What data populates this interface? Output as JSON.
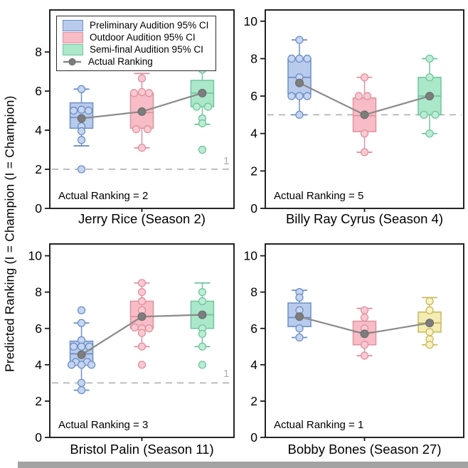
{
  "figure": {
    "y_axis_label": "Predicted Ranking (I = Champion (I = Champion)",
    "legend": {
      "items": [
        {
          "label": "Preliminary Audition 95% CI",
          "swatch": "blue",
          "type": "box"
        },
        {
          "label": "Outdoor Audition 95% CI",
          "swatch": "pink",
          "type": "box"
        },
        {
          "label": "Semi-final Audition 95% CI",
          "swatch": "green",
          "type": "box"
        },
        {
          "label": "Actual Ranking",
          "swatch": "gray",
          "type": "line-dot"
        }
      ]
    },
    "colors": {
      "blue": {
        "fill": "#b9cbec",
        "stroke": "#6b8fc7",
        "point_fill": "#c6d5f0"
      },
      "pink": {
        "fill": "#f7bcc6",
        "stroke": "#e0919f",
        "point_fill": "#f9c9d1"
      },
      "green": {
        "fill": "#abe7c9",
        "stroke": "#6fc69e",
        "point_fill": "#bdecd5"
      },
      "yellow": {
        "fill": "#f3edb3",
        "stroke": "#c9b95a",
        "point_fill": "#f7f1c4"
      },
      "actual_gray": "#7d7d7d",
      "actual_line_gray": "#8a8a8a",
      "dashed_gray": "#b5b5b5",
      "axis_black": "#1a1a1a"
    }
  },
  "chart_data": [
    {
      "type": "box",
      "title": "Jerry Rice (Season 2)",
      "annotation": "Actual Ranking = 2",
      "actual_ranking": 2,
      "ylim": [
        0,
        10
      ],
      "yticks": [
        0,
        2,
        4,
        6,
        8
      ],
      "dashed_line_y": 2,
      "dashed_line_label": "1",
      "groups": [
        {
          "stage": "Preliminary Audition",
          "color": "blue",
          "whisker_low": 3.2,
          "q1": 4.1,
          "median": 4.65,
          "q3": 5.4,
          "whisker_high": 6.1,
          "actual": 4.6,
          "points": [
            [
              6.1,
              0
            ],
            [
              5.0,
              -11
            ],
            [
              5.05,
              0
            ],
            [
              5.0,
              10
            ],
            [
              4.2,
              0
            ],
            [
              3.95,
              0
            ],
            [
              3.5,
              0
            ],
            [
              2.0,
              0
            ]
          ]
        },
        {
          "stage": "Outdoor Audition",
          "color": "pink",
          "whisker_low": 3.1,
          "q1": 4.1,
          "median": 4.9,
          "q3": 5.9,
          "whisker_high": 6.9,
          "actual": 4.95,
          "points": [
            [
              6.65,
              0
            ],
            [
              5.9,
              -11
            ],
            [
              5.95,
              0
            ],
            [
              5.9,
              10
            ],
            [
              4.05,
              -8
            ],
            [
              4.05,
              8
            ],
            [
              3.1,
              0
            ]
          ]
        },
        {
          "stage": "Semi-final Audition",
          "color": "green",
          "whisker_low": 4.3,
          "q1": 5.2,
          "median": 5.9,
          "q3": 6.55,
          "whisker_high": 7.1,
          "actual": 5.9,
          "points": [
            [
              8.0,
              0
            ],
            [
              7.1,
              0
            ],
            [
              5.2,
              -8
            ],
            [
              5.2,
              8
            ],
            [
              4.6,
              0
            ],
            [
              4.35,
              0
            ],
            [
              3.0,
              0
            ]
          ]
        }
      ]
    },
    {
      "type": "box",
      "title": "Billy Ray Cyrus (Season 4)",
      "annotation": "Actual Ranking = 5",
      "actual_ranking": 5,
      "ylim": [
        0,
        10
      ],
      "yticks": [
        0,
        2,
        4,
        6,
        8,
        10
      ],
      "dashed_line_y": 5,
      "dashed_line_label": null,
      "groups": [
        {
          "stage": "Preliminary Audition",
          "color": "blue",
          "whisker_low": 5.0,
          "q1": 6.1,
          "median": 7.0,
          "q3": 8.0,
          "whisker_high": 9.0,
          "actual": 6.7,
          "points": [
            [
              9.0,
              0
            ],
            [
              8.0,
              -11
            ],
            [
              8.0,
              0
            ],
            [
              8.0,
              11
            ],
            [
              7.0,
              0
            ],
            [
              6.0,
              -11
            ],
            [
              6.0,
              0
            ],
            [
              6.0,
              11
            ],
            [
              5.0,
              0
            ]
          ]
        },
        {
          "stage": "Outdoor Audition",
          "color": "pink",
          "whisker_low": 3.0,
          "q1": 4.1,
          "median": 4.95,
          "q3": 5.9,
          "whisker_high": 7.0,
          "actual": 5.0,
          "points": [
            [
              7.0,
              0
            ],
            [
              6.0,
              -8
            ],
            [
              6.0,
              4
            ],
            [
              4.0,
              0
            ],
            [
              3.0,
              0
            ]
          ]
        },
        {
          "stage": "Semi-final Audition",
          "color": "green",
          "whisker_low": 4.0,
          "q1": 5.0,
          "median": 6.0,
          "q3": 7.0,
          "whisker_high": 8.0,
          "actual": 6.0,
          "points": [
            [
              8.0,
              0
            ],
            [
              7.0,
              0
            ],
            [
              5.0,
              -8
            ],
            [
              5.0,
              8
            ],
            [
              4.0,
              0
            ]
          ]
        }
      ]
    },
    {
      "type": "box",
      "title": "Bristol Palin (Season 11)",
      "annotation": "Actual Ranking = 3",
      "actual_ranking": 3,
      "ylim": [
        0,
        10
      ],
      "yticks": [
        0,
        2,
        4,
        6,
        8,
        10
      ],
      "dashed_line_y": 3,
      "dashed_line_label": "1",
      "groups": [
        {
          "stage": "Preliminary Audition",
          "color": "blue",
          "whisker_low": 2.6,
          "q1": 4.05,
          "median": 4.6,
          "q3": 5.3,
          "whisker_high": 6.3,
          "actual": 4.55,
          "points": [
            [
              7.0,
              0
            ],
            [
              6.3,
              0
            ],
            [
              5.35,
              0
            ],
            [
              5.0,
              -11
            ],
            [
              5.0,
              0
            ],
            [
              5.0,
              11
            ],
            [
              4.15,
              -8
            ],
            [
              4.15,
              8
            ],
            [
              4.0,
              -14
            ],
            [
              4.0,
              0
            ],
            [
              4.0,
              14
            ],
            [
              3.0,
              0
            ],
            [
              2.6,
              0
            ]
          ]
        },
        {
          "stage": "Outdoor Audition",
          "color": "pink",
          "whisker_low": 5.0,
          "q1": 6.0,
          "median": 6.65,
          "q3": 7.5,
          "whisker_high": 8.5,
          "actual": 6.65,
          "points": [
            [
              8.5,
              0
            ],
            [
              8.0,
              0
            ],
            [
              7.5,
              0
            ],
            [
              7.0,
              0
            ],
            [
              6.05,
              -10
            ],
            [
              6.0,
              0
            ],
            [
              6.0,
              10
            ],
            [
              5.75,
              0
            ],
            [
              5.0,
              0
            ],
            [
              4.0,
              0
            ]
          ]
        },
        {
          "stage": "Semi-final Audition",
          "color": "green",
          "whisker_low": 5.0,
          "q1": 6.0,
          "median": 6.75,
          "q3": 7.5,
          "whisker_high": 8.5,
          "actual": 6.75,
          "points": [
            [
              8.0,
              0
            ],
            [
              7.5,
              0
            ],
            [
              6.0,
              0
            ],
            [
              5.7,
              0
            ],
            [
              5.0,
              0
            ],
            [
              4.0,
              0
            ]
          ]
        }
      ]
    },
    {
      "type": "box",
      "title": "Bobby Bones (Season 27)",
      "annotation": "Actual Ranking = 1",
      "actual_ranking": 1,
      "ylim": [
        0,
        10
      ],
      "yticks": [
        0,
        2,
        4,
        6,
        8,
        10
      ],
      "dashed_line_y": null,
      "dashed_line_label": null,
      "groups": [
        {
          "stage": "Preliminary Audition",
          "color": "blue",
          "whisker_low": 5.5,
          "q1": 6.1,
          "median": 6.6,
          "q3": 7.4,
          "whisker_high": 8.1,
          "actual": 6.65,
          "points": [
            [
              8.0,
              0
            ],
            [
              7.7,
              0
            ],
            [
              7.0,
              0
            ],
            [
              6.0,
              0
            ],
            [
              5.5,
              0
            ]
          ]
        },
        {
          "stage": "Outdoor Audition",
          "color": "pink",
          "whisker_low": 4.5,
          "q1": 5.1,
          "median": 5.8,
          "q3": 6.4,
          "whisker_high": 7.1,
          "actual": 5.7,
          "points": [
            [
              7.0,
              0
            ],
            [
              6.6,
              0
            ],
            [
              6.0,
              0
            ],
            [
              5.1,
              0
            ],
            [
              4.5,
              0
            ]
          ]
        },
        {
          "stage": "Semi-final Audition",
          "color": "yellow",
          "whisker_low": 5.1,
          "q1": 5.8,
          "median": 6.3,
          "q3": 6.9,
          "whisker_high": 7.7,
          "actual": 6.3,
          "points": [
            [
              7.5,
              0
            ],
            [
              7.0,
              0
            ],
            [
              5.8,
              0
            ],
            [
              5.4,
              0
            ],
            [
              5.1,
              0
            ]
          ]
        }
      ]
    }
  ]
}
